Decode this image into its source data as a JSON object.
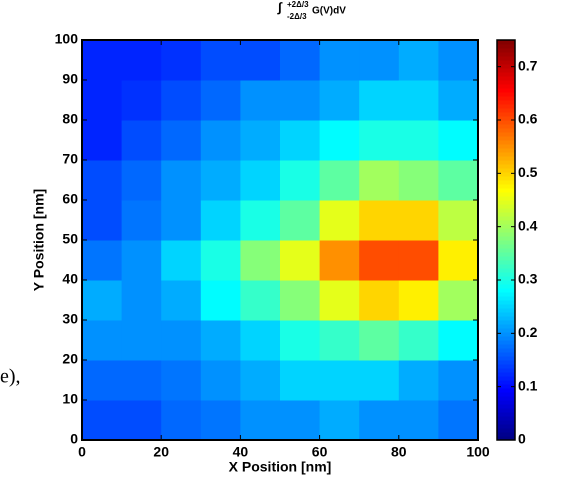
{
  "chart_data": {
    "type": "heatmap",
    "title": "G(V)dV",
    "title_symbol": "∫",
    "title_upper": "+2Δ/3",
    "title_lower": "-2Δ/3",
    "x_label": "X  Position [nm]",
    "y_label": "Y Position [nm]",
    "side_text": "e),",
    "xlim": [
      0,
      100
    ],
    "xticks": [
      0,
      20,
      40,
      60,
      80,
      100
    ],
    "ylim": [
      0,
      100
    ],
    "yticks": [
      0,
      10,
      20,
      30,
      40,
      50,
      60,
      70,
      80,
      90,
      100
    ],
    "clim": [
      0,
      0.75
    ],
    "cticks": [
      0,
      0.1,
      0.2,
      0.3,
      0.4,
      0.5,
      0.6,
      0.7
    ],
    "colormap": "jet",
    "z": [
      [
        0.15,
        0.15,
        0.17,
        0.18,
        0.2,
        0.2,
        0.22,
        0.2,
        0.2,
        0.18
      ],
      [
        0.17,
        0.17,
        0.18,
        0.2,
        0.22,
        0.25,
        0.25,
        0.25,
        0.22,
        0.2
      ],
      [
        0.2,
        0.2,
        0.2,
        0.22,
        0.25,
        0.3,
        0.32,
        0.35,
        0.32,
        0.28
      ],
      [
        0.22,
        0.2,
        0.22,
        0.28,
        0.32,
        0.38,
        0.45,
        0.5,
        0.48,
        0.4
      ],
      [
        0.18,
        0.2,
        0.25,
        0.3,
        0.38,
        0.45,
        0.55,
        0.6,
        0.6,
        0.48
      ],
      [
        0.15,
        0.18,
        0.2,
        0.25,
        0.3,
        0.35,
        0.45,
        0.5,
        0.5,
        0.42
      ],
      [
        0.15,
        0.17,
        0.2,
        0.22,
        0.25,
        0.3,
        0.35,
        0.4,
        0.38,
        0.35
      ],
      [
        0.12,
        0.15,
        0.17,
        0.2,
        0.22,
        0.25,
        0.28,
        0.3,
        0.3,
        0.28
      ],
      [
        0.12,
        0.13,
        0.15,
        0.17,
        0.2,
        0.2,
        0.22,
        0.25,
        0.25,
        0.22
      ],
      [
        0.12,
        0.12,
        0.13,
        0.15,
        0.15,
        0.17,
        0.2,
        0.2,
        0.22,
        0.2
      ]
    ]
  }
}
